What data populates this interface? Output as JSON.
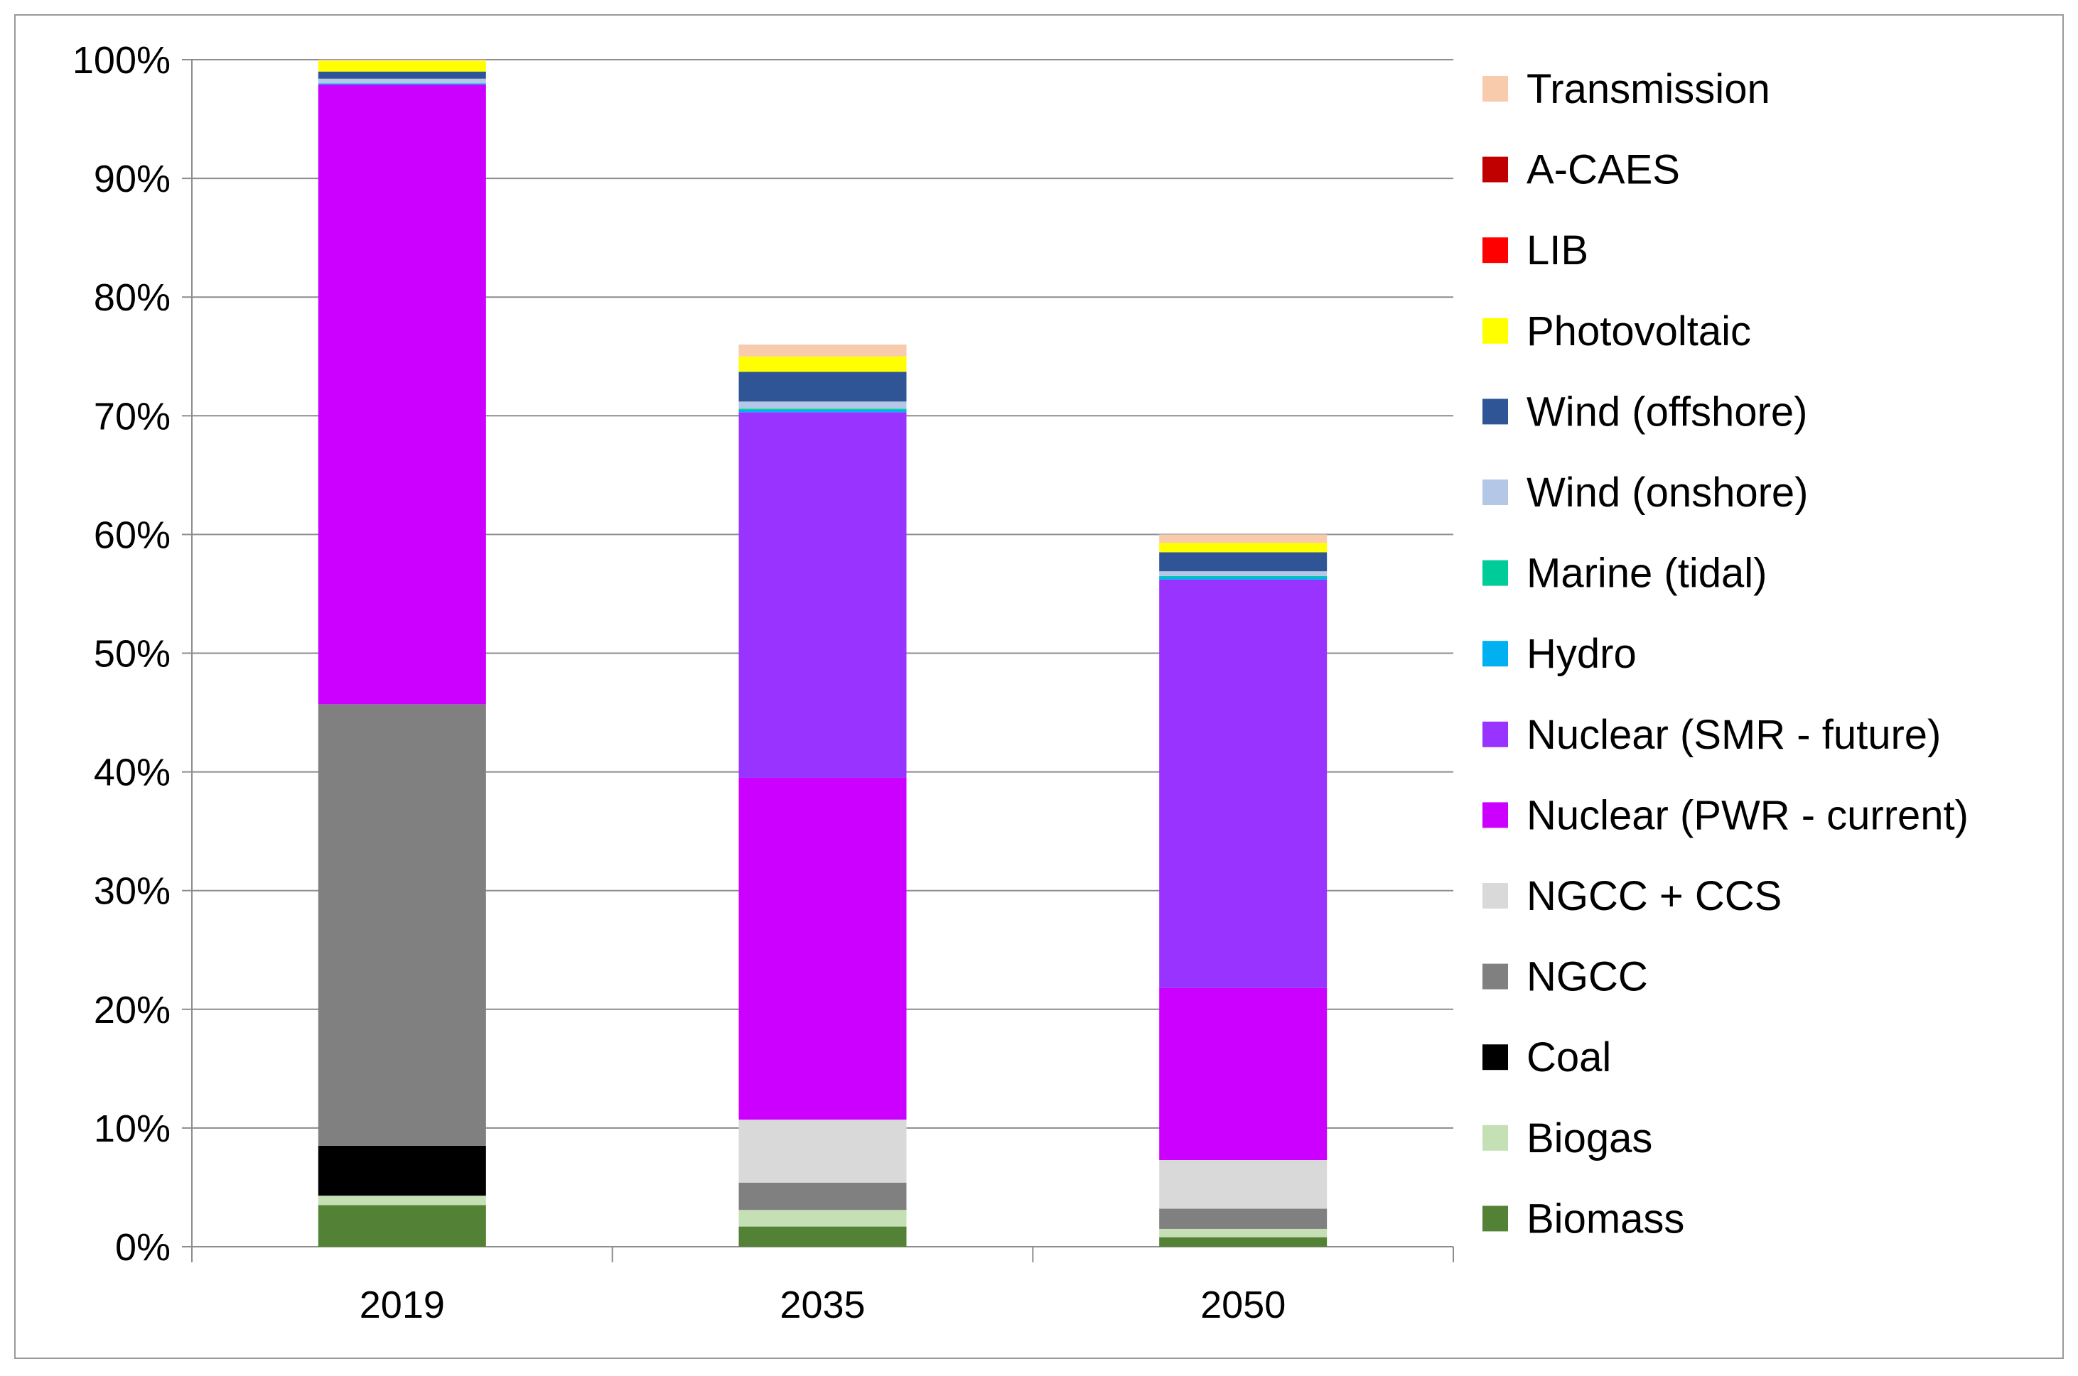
{
  "chart_data": {
    "type": "bar",
    "stacked": true,
    "title": "",
    "xlabel": "",
    "ylabel": "",
    "ylim": [
      0,
      100
    ],
    "y_ticks": [
      "0%",
      "10%",
      "20%",
      "30%",
      "40%",
      "50%",
      "60%",
      "70%",
      "80%",
      "90%",
      "100%"
    ],
    "grid": true,
    "legend_position": "right",
    "categories": [
      "2019",
      "2035",
      "2050"
    ],
    "series": [
      {
        "name": "Biomass",
        "color": "#538135",
        "values": [
          3.5,
          1.7,
          0.8
        ]
      },
      {
        "name": "Biogas",
        "color": "#c5e0b4",
        "values": [
          0.8,
          1.4,
          0.7
        ]
      },
      {
        "name": "Coal",
        "color": "#000000",
        "values": [
          4.2,
          0,
          0
        ]
      },
      {
        "name": "NGCC",
        "color": "#808080",
        "values": [
          37.2,
          2.3,
          1.7
        ]
      },
      {
        "name": "NGCC + CCS",
        "color": "#d9d9d9",
        "values": [
          0,
          5.3,
          4.1
        ]
      },
      {
        "name": "Nuclear (PWR - current)",
        "color": "#cc00ff",
        "values": [
          52.2,
          28.8,
          14.5
        ]
      },
      {
        "name": "Nuclear (SMR - future)",
        "color": "#9933ff",
        "values": [
          0,
          30.8,
          34.4
        ]
      },
      {
        "name": "Hydro",
        "color": "#00b0f0",
        "values": [
          0.1,
          0.2,
          0.2
        ]
      },
      {
        "name": "Marine (tidal)",
        "color": "#00cc99",
        "values": [
          0,
          0.1,
          0.1
        ]
      },
      {
        "name": "Wind (onshore)",
        "color": "#b4c7e7",
        "values": [
          0.4,
          0.6,
          0.4
        ]
      },
      {
        "name": "Wind (offshore)",
        "color": "#2f5597",
        "values": [
          0.6,
          2.5,
          1.6
        ]
      },
      {
        "name": "Photovoltaic",
        "color": "#ffff00",
        "values": [
          0.9,
          1.3,
          0.8
        ]
      },
      {
        "name": "LIB",
        "color": "#ff0000",
        "values": [
          0,
          0,
          0
        ]
      },
      {
        "name": "A-CAES",
        "color": "#c00000",
        "values": [
          0,
          0,
          0
        ]
      },
      {
        "name": "Transmission",
        "color": "#f8cbad",
        "values": [
          0.1,
          1.0,
          0.7
        ]
      }
    ]
  }
}
